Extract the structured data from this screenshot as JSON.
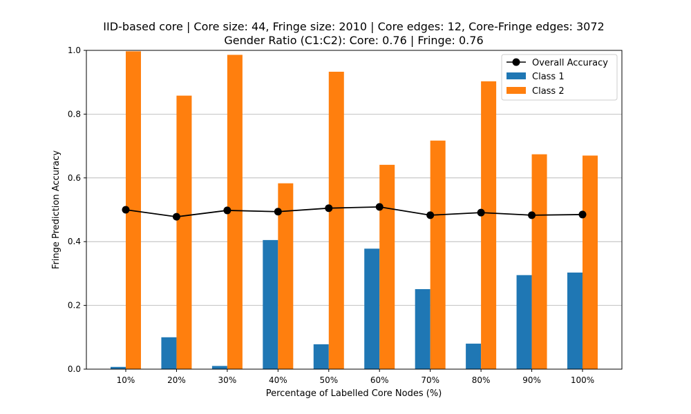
{
  "chart_data": {
    "type": "bar",
    "title": "IID-based core | Core size: 44, Fringe size: 2010 | Core edges: 12, Core-Fringe edges: 3072",
    "subtitle": "Gender Ratio (C1:C2): Core: 0.76 | Fringe: 0.76",
    "xlabel": "Percentage of Labelled Core Nodes (%)",
    "ylabel": "Fringe Prediction Accuracy",
    "ylim": [
      0,
      1.0
    ],
    "yticks": [
      "0.0",
      "0.2",
      "0.4",
      "0.6",
      "0.8",
      "1.0"
    ],
    "grid": "y",
    "legend_position": "top-right",
    "categories": [
      "10%",
      "20%",
      "30%",
      "40%",
      "50%",
      "60%",
      "70%",
      "80%",
      "90%",
      "100%"
    ],
    "series": [
      {
        "name": "Class 1",
        "type": "bar",
        "color": "#1f77b4",
        "values": [
          0.007,
          0.1,
          0.01,
          0.405,
          0.078,
          0.378,
          0.251,
          0.08,
          0.295,
          0.303
        ]
      },
      {
        "name": "Class 2",
        "type": "bar",
        "color": "#ff7f0e",
        "values": [
          0.997,
          0.858,
          0.986,
          0.583,
          0.933,
          0.641,
          0.717,
          0.903,
          0.674,
          0.67
        ]
      },
      {
        "name": "Overall Accuracy",
        "type": "line",
        "color": "#000000",
        "values": [
          0.5,
          0.478,
          0.498,
          0.494,
          0.505,
          0.509,
          0.483,
          0.491,
          0.483,
          0.485
        ]
      }
    ]
  }
}
